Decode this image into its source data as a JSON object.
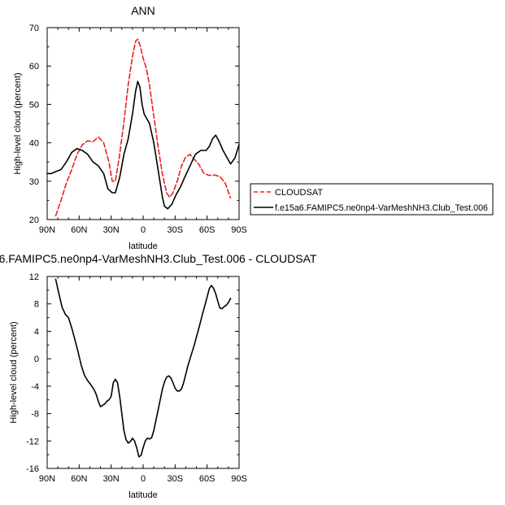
{
  "chart_data": [
    {
      "type": "line",
      "title": "ANN",
      "xlabel": "latitude",
      "ylabel": "High-level cloud (percent)",
      "x_ticks": [
        -90,
        -60,
        -30,
        0,
        30,
        60,
        90
      ],
      "x_tick_labels": [
        "90N",
        "60N",
        "30N",
        "0",
        "30S",
        "60S",
        "90S"
      ],
      "xlim": [
        -90,
        90
      ],
      "y_ticks": [
        20,
        30,
        40,
        50,
        60,
        70
      ],
      "ylim": [
        20,
        70
      ],
      "legend_position": "right",
      "series": [
        {
          "name": "CLOUDSAT",
          "color": "#e8231f",
          "style": "dashed",
          "x": [
            -82,
            -77,
            -72,
            -67,
            -62,
            -57,
            -52,
            -47,
            -42,
            -37,
            -32,
            -29,
            -26,
            -22,
            -18,
            -14,
            -10,
            -7,
            -5,
            -3,
            0,
            3,
            6,
            10,
            14,
            18,
            22,
            25,
            28,
            32,
            36,
            40,
            44,
            48,
            52,
            57,
            62,
            67,
            72,
            77,
            82
          ],
          "y": [
            21,
            25,
            29.5,
            33,
            37,
            39.5,
            40.5,
            40.3,
            41.5,
            40,
            35,
            30,
            30,
            37,
            45.5,
            55,
            62.5,
            66.5,
            67,
            65.5,
            62,
            59.5,
            55,
            47,
            39,
            32,
            27,
            25.8,
            27,
            30,
            34,
            36.3,
            37,
            35.7,
            34.5,
            32,
            31.5,
            31.6,
            31.2,
            29.5,
            25.6
          ]
        },
        {
          "name": "f.e15a6.FAMIPC5.ne0np4-VarMeshNH3.Club_Test.006",
          "color": "#000000",
          "style": "solid",
          "x": [
            -90,
            -86,
            -82,
            -77,
            -72,
            -67,
            -62,
            -57,
            -52,
            -47,
            -42,
            -37,
            -33,
            -29,
            -26,
            -22,
            -18,
            -14,
            -10,
            -7,
            -5,
            -3,
            -1,
            1,
            3,
            6,
            10,
            14,
            18,
            20,
            23,
            27,
            31,
            35,
            39,
            44,
            49,
            54,
            59,
            62,
            65,
            68,
            71,
            75,
            79,
            82,
            86,
            90
          ],
          "y": [
            32,
            32,
            32.5,
            33,
            35,
            37.5,
            38.5,
            38,
            37,
            35,
            34,
            32,
            28,
            27,
            27,
            31,
            37,
            41,
            47.5,
            53.5,
            56,
            54.5,
            50,
            47.5,
            46.5,
            45,
            40,
            33,
            26,
            23.5,
            22.8,
            24,
            26.5,
            28.5,
            31,
            34,
            37,
            38,
            38,
            39,
            41,
            42,
            40.5,
            38,
            36,
            34.5,
            36,
            39.5
          ]
        }
      ]
    },
    {
      "type": "line",
      "title": "6.FAMIPC5.ne0np4-VarMeshNH3.Club_Test.006 - CLOUDSAT",
      "xlabel": "latitude",
      "ylabel": "High-level cloud (percent)",
      "x_ticks": [
        -90,
        -60,
        -30,
        0,
        30,
        60,
        90
      ],
      "x_tick_labels": [
        "90N",
        "60N",
        "30N",
        "0",
        "30S",
        "60S",
        "90S"
      ],
      "xlim": [
        -90,
        90
      ],
      "y_ticks": [
        -16,
        -12,
        -8,
        -4,
        0,
        4,
        8,
        12
      ],
      "ylim": [
        -16,
        12
      ],
      "series": [
        {
          "name": "",
          "color": "#000000",
          "style": "solid",
          "x": [
            -82,
            -79,
            -76,
            -73,
            -70,
            -67,
            -64,
            -61,
            -58,
            -55,
            -52,
            -49,
            -46,
            -44,
            -42,
            -40,
            -38,
            -36,
            -34,
            -32,
            -30,
            -28,
            -26,
            -24,
            -22,
            -20,
            -18,
            -16,
            -14,
            -12,
            -10,
            -8,
            -6,
            -4,
            -2,
            0,
            2,
            4,
            6,
            8,
            10,
            12,
            14,
            16,
            18,
            20,
            22,
            24,
            26,
            28,
            30,
            32,
            34,
            36,
            38,
            40,
            42,
            44,
            46,
            48,
            50,
            52,
            54,
            56,
            58,
            60,
            62,
            64,
            66,
            68,
            70,
            72,
            74,
            76,
            78,
            80,
            82
          ],
          "y": [
            11.6,
            9.5,
            7.5,
            6.5,
            6,
            4.5,
            2.8,
            1,
            -1,
            -2.4,
            -3.2,
            -3.8,
            -4.5,
            -5.2,
            -6.2,
            -7,
            -6.8,
            -6.6,
            -6.2,
            -6,
            -5.5,
            -3.5,
            -3,
            -3.5,
            -5.5,
            -8,
            -10.5,
            -11.8,
            -12.3,
            -12.1,
            -11.6,
            -12,
            -13,
            -14.3,
            -14.1,
            -13,
            -12,
            -11.6,
            -11.7,
            -11.5,
            -10.5,
            -9,
            -7.5,
            -6,
            -4.5,
            -3.4,
            -2.7,
            -2.5,
            -2.8,
            -3.5,
            -4.3,
            -4.7,
            -4.7,
            -4.4,
            -3.5,
            -2.3,
            -1,
            0,
            1,
            2,
            3.2,
            4.3,
            5.5,
            6.7,
            7.8,
            9,
            10.2,
            10.7,
            10.3,
            9.5,
            8.4,
            7.4,
            7.3,
            7.6,
            7.8,
            8.2,
            8.8
          ]
        }
      ]
    }
  ]
}
